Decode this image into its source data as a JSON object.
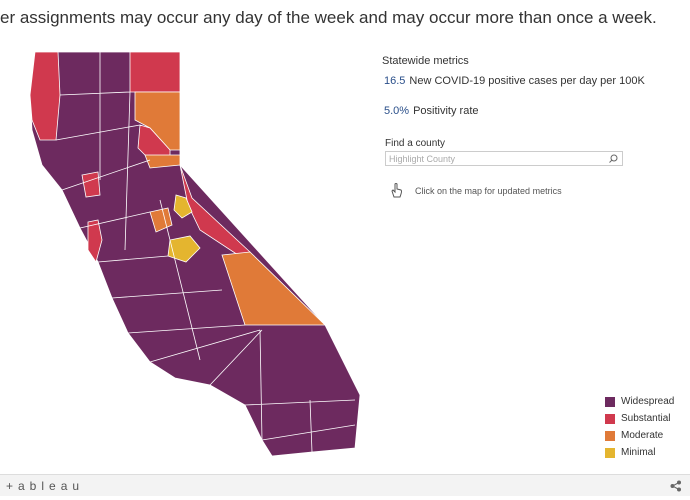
{
  "header": {
    "text": "er assignments may occur any day of the week and may occur more than once a week."
  },
  "metrics": {
    "title": "Statewide metrics",
    "items": [
      {
        "value": "16.5",
        "label": "New COVID-19 positive cases per day per 100K"
      },
      {
        "value": "5.0%",
        "label": "Positivity rate"
      }
    ]
  },
  "search": {
    "label": "Find a county",
    "placeholder": "Highlight County"
  },
  "hint": "Click on the map for updated metrics",
  "legend": [
    {
      "name": "Widespread",
      "color": "#6d2a5f"
    },
    {
      "name": "Substantial",
      "color": "#d0394e"
    },
    {
      "name": "Moderate",
      "color": "#e07a38"
    },
    {
      "name": "Minimal",
      "color": "#e4b52f"
    }
  ],
  "footer": {
    "logo": "+ableau"
  }
}
